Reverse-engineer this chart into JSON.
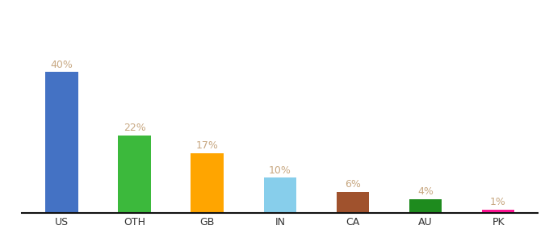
{
  "categories": [
    "US",
    "OTH",
    "GB",
    "IN",
    "CA",
    "AU",
    "PK"
  ],
  "values": [
    40,
    22,
    17,
    10,
    6,
    4,
    1
  ],
  "bar_colors": [
    "#4472C4",
    "#3CB93C",
    "#FFA500",
    "#87CEEB",
    "#A0522D",
    "#1E8B1E",
    "#FF1493"
  ],
  "labels": [
    "40%",
    "22%",
    "17%",
    "10%",
    "6%",
    "4%",
    "1%"
  ],
  "label_color": "#C8A882",
  "background_color": "#ffffff",
  "ylim": [
    0,
    55
  ],
  "bar_width": 0.45
}
